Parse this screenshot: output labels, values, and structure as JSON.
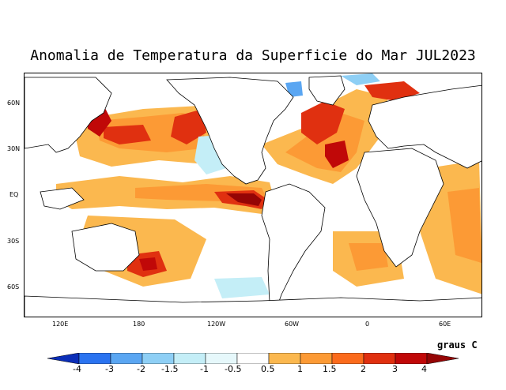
{
  "title": "Anomalia de Temperatura da Superficie do Mar JUL2023",
  "latitude_labels": [
    "60N",
    "30N",
    "EQ",
    "30S",
    "60S"
  ],
  "longitude_labels": [
    "120E",
    "180",
    "120W",
    "60W",
    "0",
    "60E"
  ],
  "units": "graus C",
  "colorbar": {
    "ticks": [
      "-4",
      "-3",
      "-2",
      "-1.5",
      "-1",
      "-0.5",
      "0.5",
      "1",
      "1.5",
      "2",
      "3",
      "4"
    ],
    "colors": [
      "#0b2eb8",
      "#2a73f0",
      "#5aa6f2",
      "#8ecff5",
      "#c4eef7",
      "#ffffff",
      "#fbb84f",
      "#fc9a35",
      "#fb6b1c",
      "#e03010",
      "#c00808",
      "#950505"
    ]
  },
  "colors": {
    "land": "#ffffff",
    "coast": "#000000",
    "warm_light": "#fbb84f",
    "warm_mid": "#fc9a35",
    "warm_strong": "#fb6b1c",
    "hot": "#e03010",
    "very_hot": "#c00808",
    "extreme_hot": "#950505",
    "cool_light": "#c4eef7",
    "cool_mid": "#8ecff5",
    "cool_strong": "#5aa6f2"
  }
}
